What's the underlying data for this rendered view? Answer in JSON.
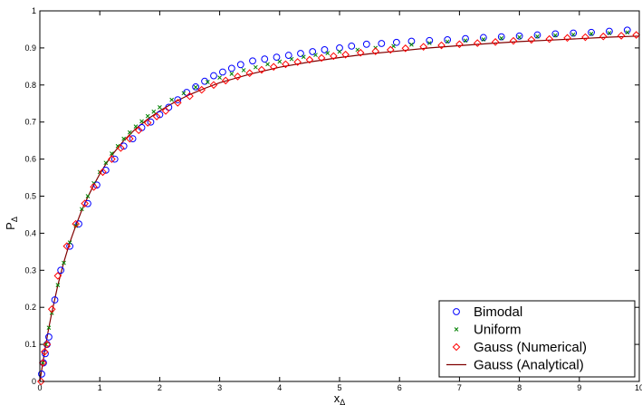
{
  "chart_data": {
    "type": "scatter",
    "xlabel": "x",
    "xlabel_sub": "Δ",
    "ylabel": "P",
    "ylabel_sub": "Δ",
    "xlim": [
      0,
      10
    ],
    "ylim": [
      0,
      1
    ],
    "xticks": [
      "0",
      "1",
      "2",
      "3",
      "4",
      "5",
      "6",
      "7",
      "8",
      "9",
      "10"
    ],
    "yticks": [
      "0",
      "0.1",
      "0.2",
      "0.3",
      "0.4",
      "0.5",
      "0.6",
      "0.7",
      "0.8",
      "0.9",
      "1"
    ],
    "grid": false,
    "legend_position": "bottom-right",
    "colors": {
      "bimodal": "#0000ff",
      "uniform": "#008000",
      "gauss_numerical": "#ff0000",
      "gauss_analytical": "#800000"
    },
    "series": [
      {
        "name": "Bimodal",
        "marker": "circle",
        "x": [
          0.03,
          0.06,
          0.09,
          0.12,
          0.15,
          0.25,
          0.35,
          0.5,
          0.65,
          0.8,
          0.95,
          1.1,
          1.25,
          1.4,
          1.55,
          1.7,
          1.85,
          2.0,
          2.15,
          2.3,
          2.45,
          2.6,
          2.75,
          2.9,
          3.05,
          3.2,
          3.35,
          3.55,
          3.75,
          3.95,
          4.15,
          4.35,
          4.55,
          4.75,
          5.0,
          5.2,
          5.45,
          5.7,
          5.95,
          6.2,
          6.5,
          6.8,
          7.1,
          7.4,
          7.7,
          8.0,
          8.3,
          8.6,
          8.9,
          9.2,
          9.5,
          9.8
        ],
        "y": [
          0.02,
          0.05,
          0.075,
          0.1,
          0.12,
          0.22,
          0.3,
          0.365,
          0.425,
          0.48,
          0.53,
          0.57,
          0.6,
          0.635,
          0.655,
          0.685,
          0.7,
          0.72,
          0.74,
          0.76,
          0.78,
          0.795,
          0.81,
          0.825,
          0.835,
          0.845,
          0.855,
          0.865,
          0.87,
          0.875,
          0.88,
          0.885,
          0.89,
          0.895,
          0.9,
          0.905,
          0.91,
          0.912,
          0.915,
          0.918,
          0.92,
          0.922,
          0.925,
          0.928,
          0.93,
          0.932,
          0.935,
          0.938,
          0.94,
          0.942,
          0.945,
          0.948
        ]
      },
      {
        "name": "Uniform",
        "marker": "x",
        "x": [
          0.05,
          0.1,
          0.15,
          0.2,
          0.3,
          0.4,
          0.5,
          0.6,
          0.7,
          0.8,
          0.9,
          1.0,
          1.1,
          1.2,
          1.3,
          1.4,
          1.5,
          1.6,
          1.7,
          1.8,
          1.9,
          2.0,
          2.2,
          2.4,
          2.6,
          2.8,
          3.0,
          3.2,
          3.4,
          3.6,
          3.8,
          4.0,
          4.2,
          4.4,
          4.6,
          4.8,
          5.0,
          5.3,
          5.6,
          5.9,
          6.2,
          6.5,
          6.8,
          7.1,
          7.4,
          7.7,
          8.0,
          8.3,
          8.6,
          8.9,
          9.2,
          9.5,
          9.8
        ],
        "y": [
          0.05,
          0.1,
          0.145,
          0.185,
          0.26,
          0.32,
          0.375,
          0.42,
          0.465,
          0.5,
          0.535,
          0.565,
          0.59,
          0.615,
          0.635,
          0.655,
          0.672,
          0.688,
          0.702,
          0.716,
          0.728,
          0.74,
          0.76,
          0.778,
          0.794,
          0.808,
          0.82,
          0.83,
          0.84,
          0.848,
          0.856,
          0.863,
          0.87,
          0.876,
          0.881,
          0.886,
          0.89,
          0.895,
          0.9,
          0.905,
          0.909,
          0.913,
          0.917,
          0.92,
          0.923,
          0.926,
          0.929,
          0.931,
          0.934,
          0.936,
          0.938,
          0.94,
          0.942
        ]
      },
      {
        "name": "Gauss (Numerical)",
        "marker": "diamond",
        "x": [
          0.02,
          0.05,
          0.08,
          0.12,
          0.2,
          0.3,
          0.45,
          0.6,
          0.75,
          0.9,
          1.05,
          1.2,
          1.35,
          1.5,
          1.65,
          1.8,
          1.95,
          2.1,
          2.3,
          2.5,
          2.7,
          2.9,
          3.1,
          3.3,
          3.5,
          3.7,
          3.9,
          4.1,
          4.3,
          4.5,
          4.7,
          4.9,
          5.1,
          5.35,
          5.6,
          5.85,
          6.1,
          6.4,
          6.7,
          7.0,
          7.3,
          7.6,
          7.9,
          8.2,
          8.5,
          8.8,
          9.1,
          9.4,
          9.7,
          9.95
        ],
        "y": [
          0.0,
          0.05,
          0.08,
          0.1,
          0.195,
          0.285,
          0.365,
          0.425,
          0.48,
          0.525,
          0.565,
          0.6,
          0.63,
          0.655,
          0.678,
          0.698,
          0.715,
          0.73,
          0.752,
          0.77,
          0.787,
          0.8,
          0.812,
          0.823,
          0.832,
          0.841,
          0.849,
          0.856,
          0.862,
          0.868,
          0.873,
          0.878,
          0.882,
          0.887,
          0.891,
          0.895,
          0.899,
          0.903,
          0.907,
          0.91,
          0.913,
          0.916,
          0.919,
          0.922,
          0.924,
          0.927,
          0.929,
          0.931,
          0.933,
          0.935
        ]
      },
      {
        "name": "Gauss (Analytical)",
        "marker": "line",
        "x": [
          0,
          0.05,
          0.1,
          0.15,
          0.2,
          0.3,
          0.4,
          0.5,
          0.6,
          0.7,
          0.8,
          0.9,
          1.0,
          1.1,
          1.2,
          1.4,
          1.6,
          1.8,
          2.0,
          2.25,
          2.5,
          2.75,
          3.0,
          3.5,
          4.0,
          4.5,
          5.0,
          5.5,
          6.0,
          6.5,
          7.0,
          7.5,
          8.0,
          8.5,
          9.0,
          9.5,
          10.0
        ],
        "y": [
          0.0,
          0.05,
          0.1,
          0.145,
          0.185,
          0.26,
          0.322,
          0.375,
          0.42,
          0.462,
          0.498,
          0.53,
          0.56,
          0.586,
          0.61,
          0.65,
          0.682,
          0.708,
          0.73,
          0.754,
          0.774,
          0.791,
          0.806,
          0.829,
          0.848,
          0.862,
          0.874,
          0.884,
          0.892,
          0.9,
          0.906,
          0.912,
          0.917,
          0.921,
          0.925,
          0.929,
          0.932
        ]
      }
    ]
  }
}
